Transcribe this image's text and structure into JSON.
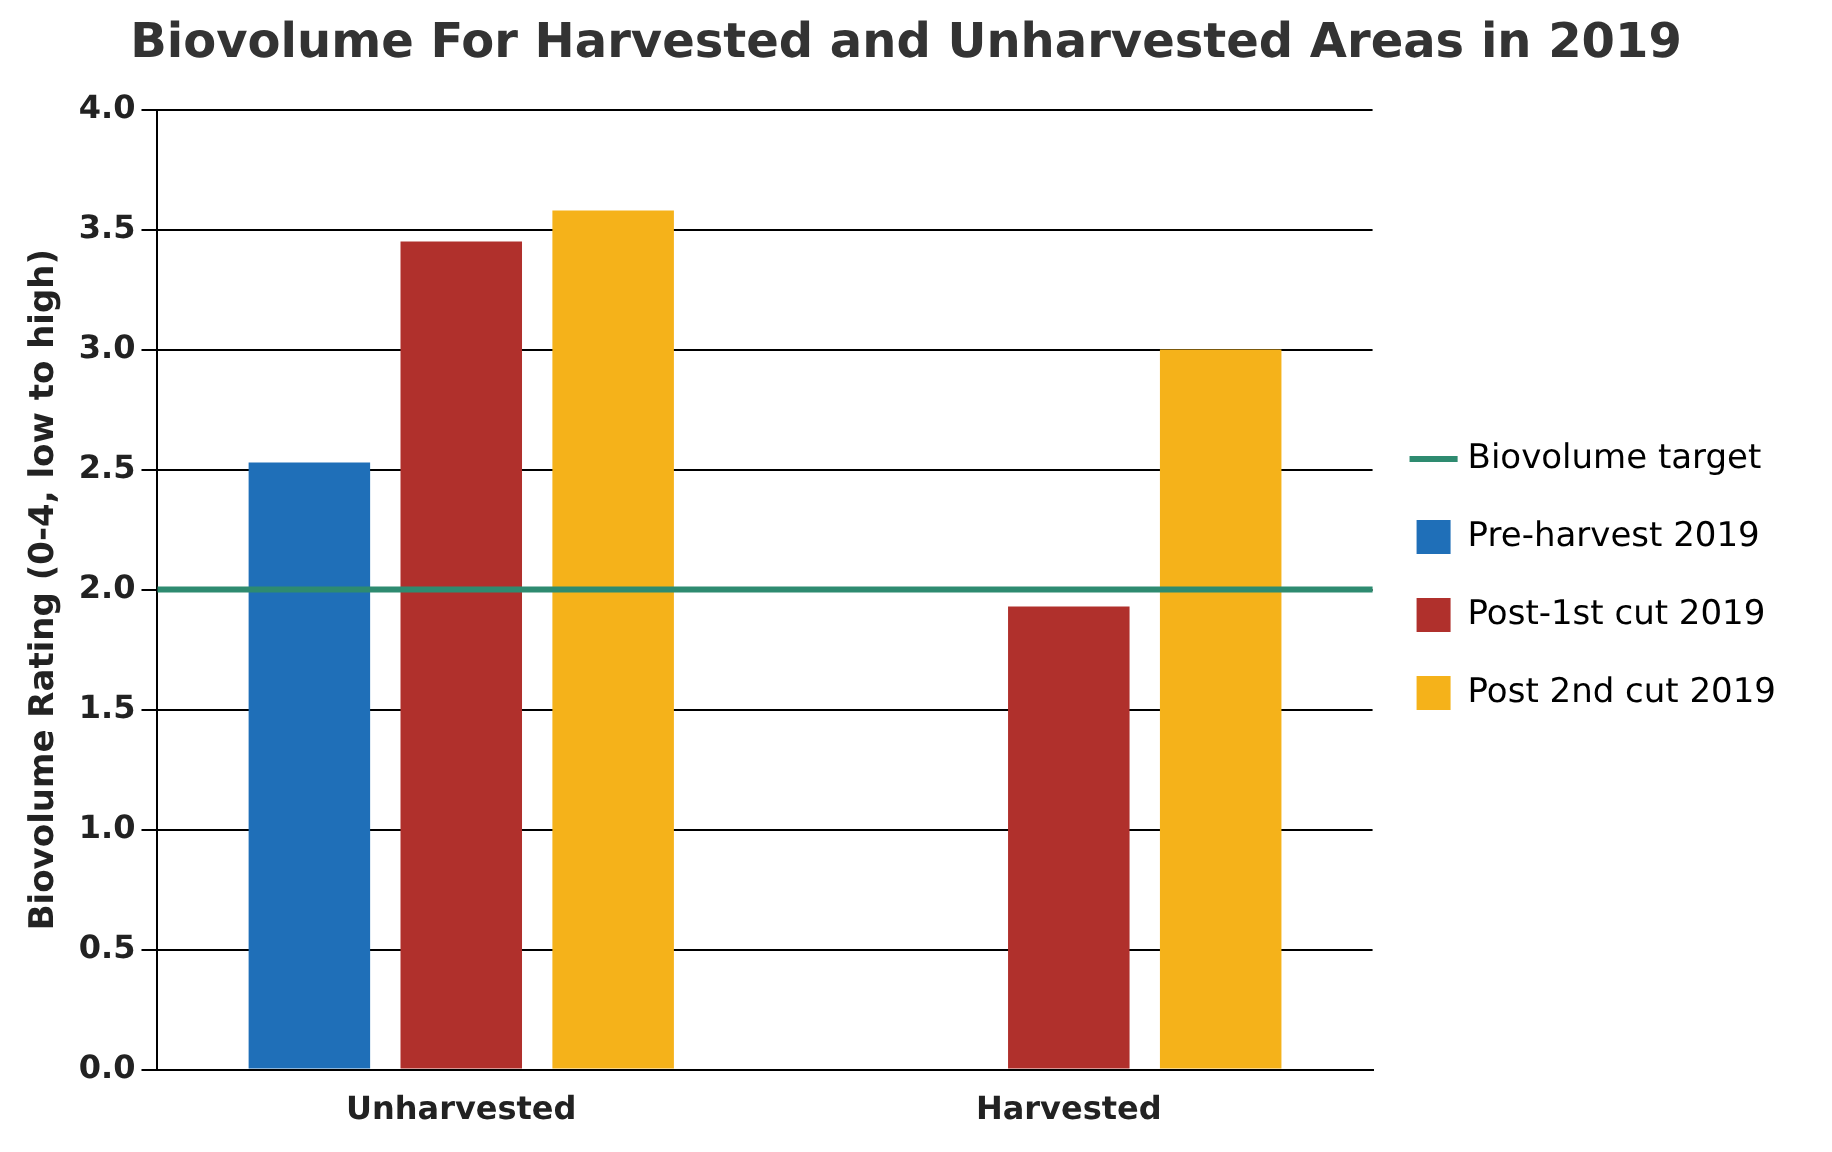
{
  "chart_data": {
    "type": "bar",
    "title": "Biovolume For Harvested and Unharvested Areas in 2019",
    "ylabel": "Biovolume Rating (0-4, low to high)",
    "categories": [
      "Unharvested",
      "Harvested"
    ],
    "series": [
      {
        "name": "Pre-harvest 2019",
        "color": "#1f6fb8",
        "values": [
          2.53,
          null
        ]
      },
      {
        "name": "Post-1st cut 2019",
        "color": "#b0302c",
        "values": [
          3.45,
          1.93
        ]
      },
      {
        "name": "Post 2nd cut 2019",
        "color": "#f5b21a",
        "values": [
          3.58,
          3.0
        ]
      }
    ],
    "ylim": [
      0,
      4
    ],
    "yticks": [
      {
        "value": 0,
        "label": "0.0"
      },
      {
        "value": 0.5,
        "label": "0.5"
      },
      {
        "value": 1,
        "label": "1.0"
      },
      {
        "value": 1.5,
        "label": "1.5"
      },
      {
        "value": 2,
        "label": "2.0"
      },
      {
        "value": 2.5,
        "label": "2.5"
      },
      {
        "value": 3,
        "label": "3.0"
      },
      {
        "value": 3.5,
        "label": "3.5"
      },
      {
        "value": 4,
        "label": "4.0"
      }
    ],
    "grid": "y",
    "legend": "right",
    "ref_lines": [
      {
        "axis": "y",
        "value": 2,
        "label": "Biovolume target",
        "color": "#2e8b70"
      }
    ]
  }
}
